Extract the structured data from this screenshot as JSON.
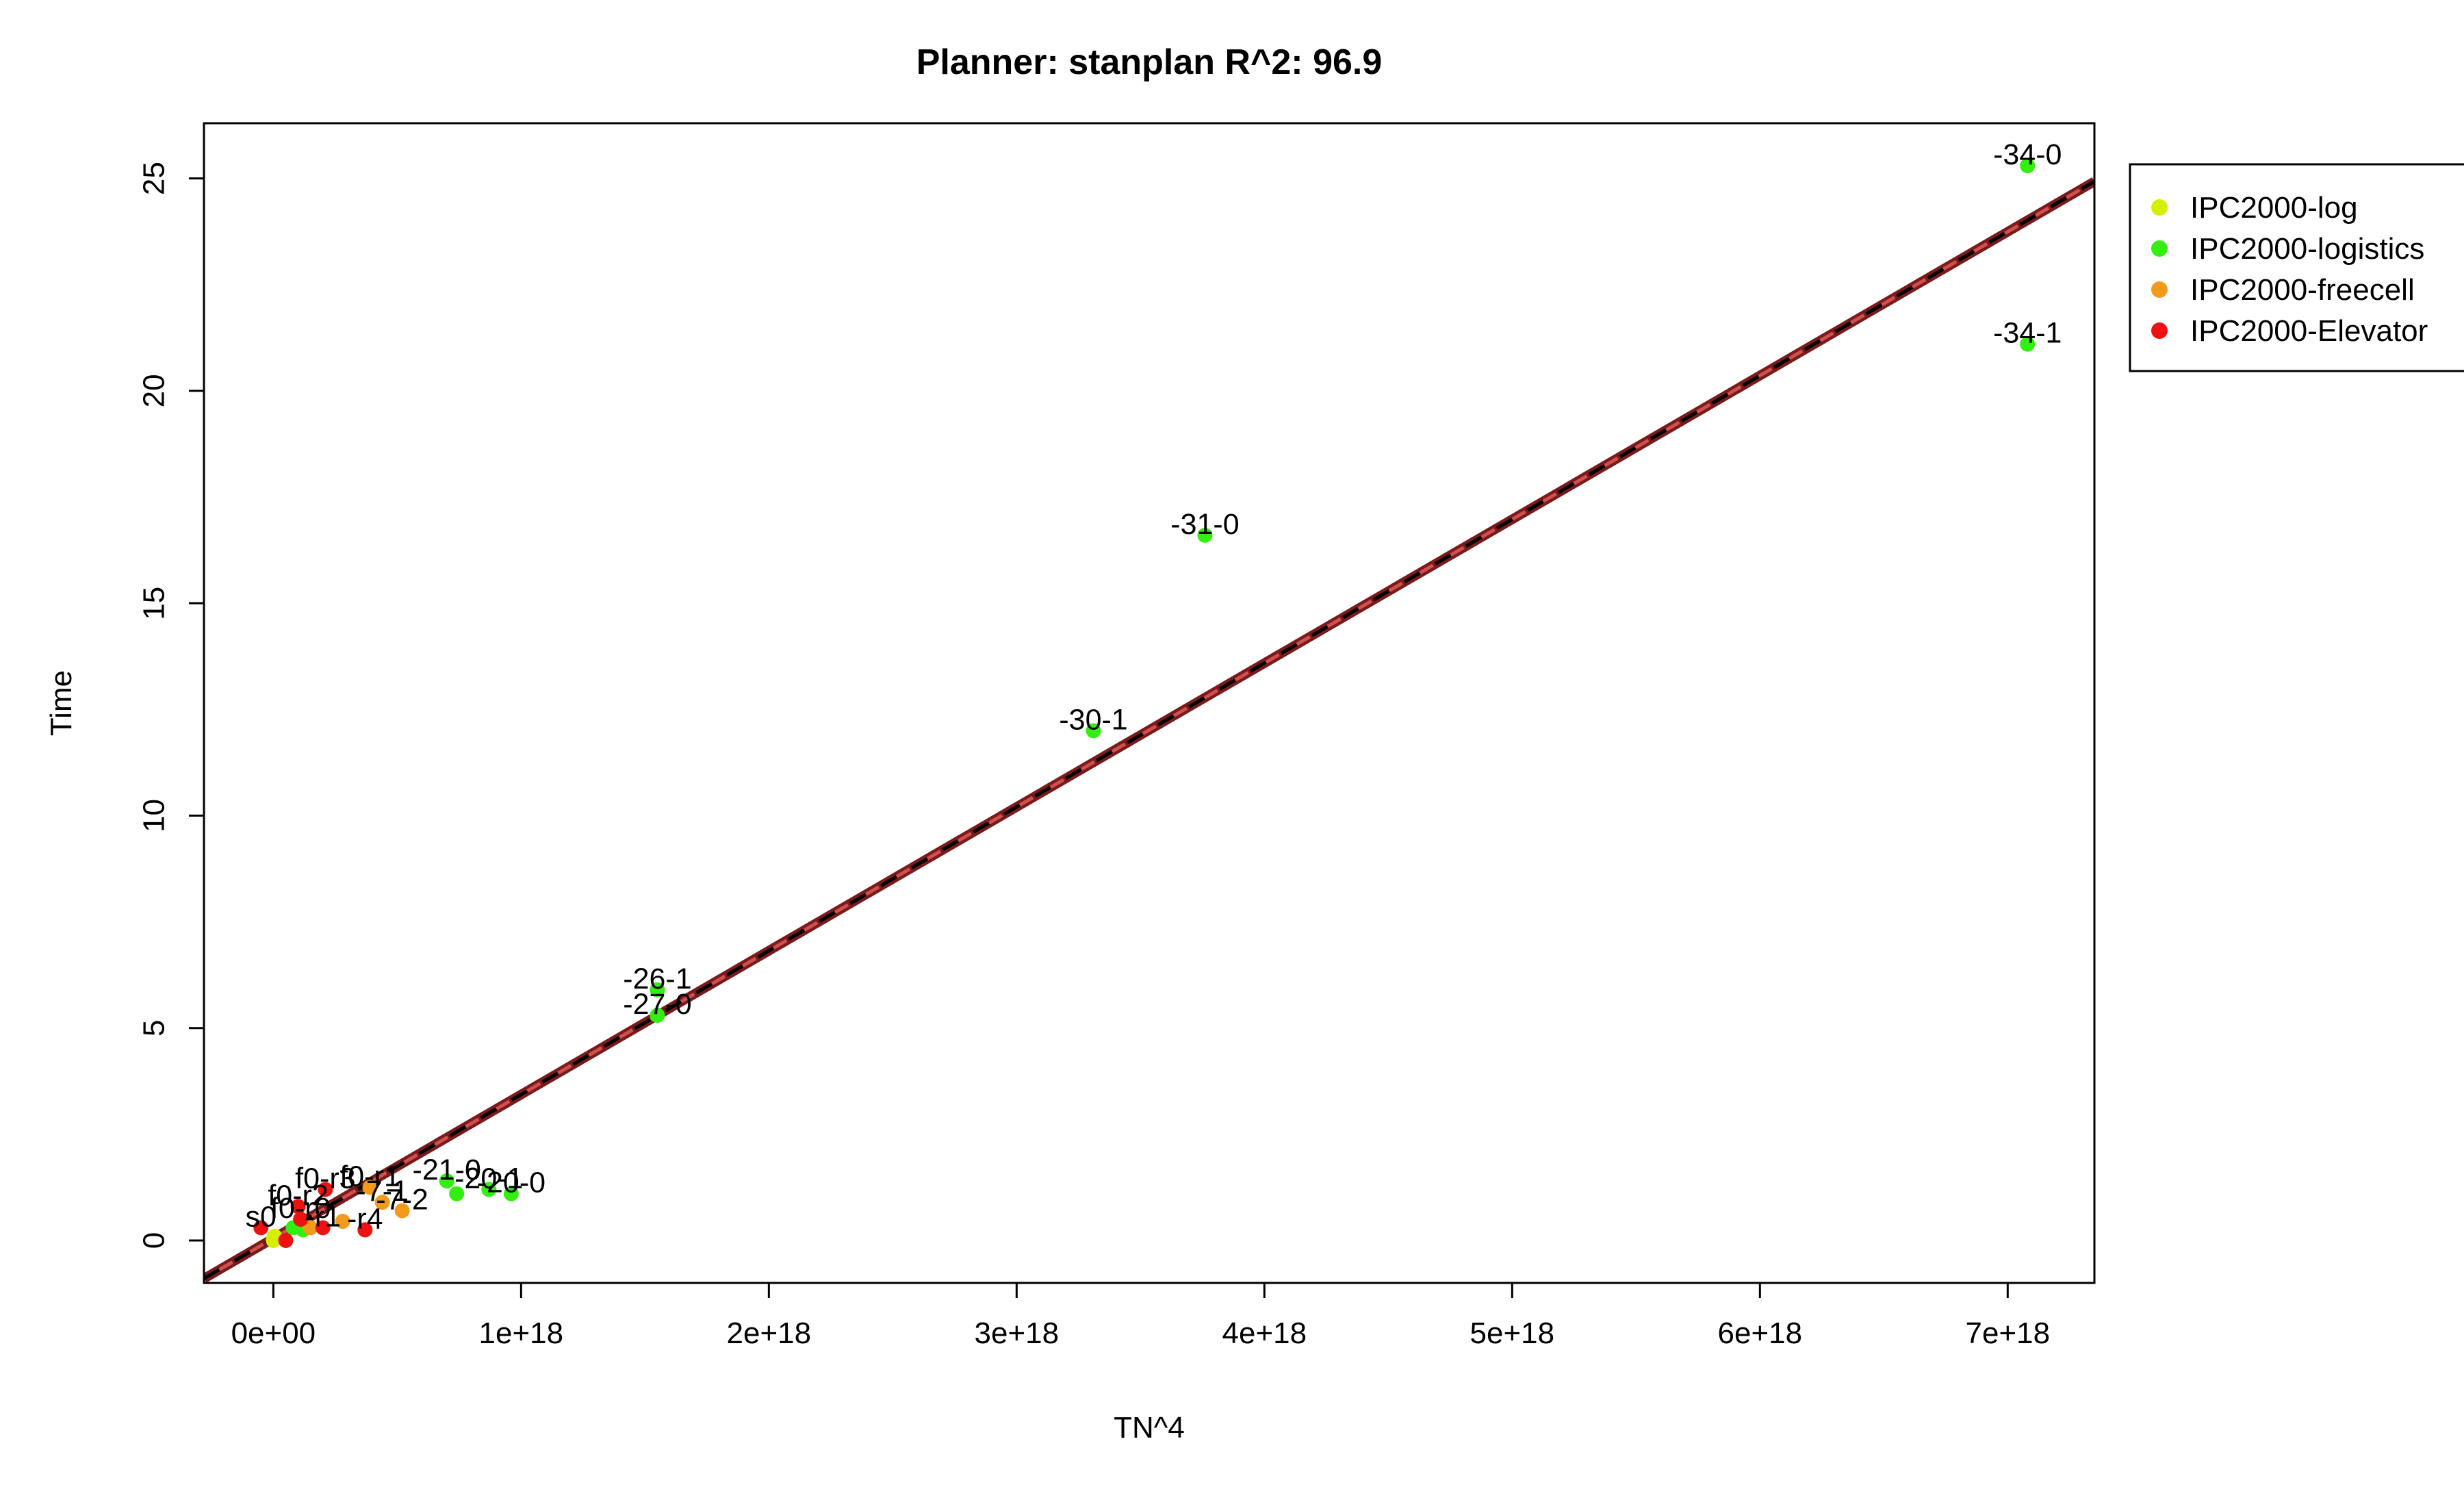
{
  "chart_data": {
    "type": "scatter",
    "title": "Planner: stanplan R^2: 96.9",
    "xlabel": "TN^4",
    "ylabel": "Time",
    "xlim": [
      -2.8e+17,
      7.35e+18
    ],
    "ylim": [
      -1.0,
      26.3
    ],
    "x_ticks": [
      {
        "value": 0,
        "label": "0e+00"
      },
      {
        "value": 1e+18,
        "label": "1e+18"
      },
      {
        "value": 2e+18,
        "label": "2e+18"
      },
      {
        "value": 3e+18,
        "label": "3e+18"
      },
      {
        "value": 4e+18,
        "label": "4e+18"
      },
      {
        "value": 5e+18,
        "label": "5e+18"
      },
      {
        "value": 6e+18,
        "label": "6e+18"
      },
      {
        "value": 7e+18,
        "label": "7e+18"
      }
    ],
    "y_ticks": [
      {
        "value": 0,
        "label": "0"
      },
      {
        "value": 5,
        "label": "5"
      },
      {
        "value": 10,
        "label": "10"
      },
      {
        "value": 15,
        "label": "15"
      },
      {
        "value": 20,
        "label": "20"
      },
      {
        "value": 25,
        "label": "25"
      }
    ],
    "legend": {
      "position": "top-right-outside",
      "entries": [
        {
          "label": "IPC2000-log",
          "color": "#d4f000"
        },
        {
          "label": "IPC2000-logistics",
          "color": "#33ee11"
        },
        {
          "label": "IPC2000-freecell",
          "color": "#f29a1a"
        },
        {
          "label": "IPC2000-Elevator",
          "color": "#ee1111"
        }
      ]
    },
    "fit_lines": [
      {
        "style": "solid",
        "color": "#7a1a1a",
        "slope": 3.385e-18,
        "intercept": 0.05
      },
      {
        "style": "dashed",
        "color": "#000000",
        "slope": 3.385e-18,
        "intercept": 0.05
      },
      {
        "style": "dashed",
        "color": "#d05050",
        "slope": 3.385e-18,
        "intercept": 0.05
      }
    ],
    "series": [
      {
        "name": "IPC2000-log",
        "color": "#d4f000",
        "points": [
          {
            "x": 0,
            "y": 0.0,
            "label": ""
          },
          {
            "x": 1000000000000000.0,
            "y": 0.05,
            "label": ""
          },
          {
            "x": 5000000000000000.0,
            "y": 0.1,
            "label": ""
          },
          {
            "x": 1e+16,
            "y": 0.05,
            "label": ""
          }
        ]
      },
      {
        "name": "IPC2000-logistics",
        "color": "#33ee11",
        "points": [
          {
            "x": 7.08e+18,
            "y": 25.3,
            "label": "-34-0"
          },
          {
            "x": 7.08e+18,
            "y": 21.1,
            "label": "-34-1"
          },
          {
            "x": 3.76e+18,
            "y": 16.6,
            "label": "-31-0"
          },
          {
            "x": 3.31e+18,
            "y": 12.0,
            "label": "-30-1"
          },
          {
            "x": 1.55e+18,
            "y": 5.9,
            "label": "-26-1"
          },
          {
            "x": 1.55e+18,
            "y": 5.3,
            "label": "-27-0"
          },
          {
            "x": 7e+17,
            "y": 1.4,
            "label": "-21-0"
          },
          {
            "x": 7.4e+17,
            "y": 1.1,
            "label": ""
          },
          {
            "x": 8.7e+17,
            "y": 1.2,
            "label": "-20-1"
          },
          {
            "x": 9.6e+17,
            "y": 1.1,
            "label": "-20-0"
          },
          {
            "x": 8e+16,
            "y": 0.3,
            "label": ""
          },
          {
            "x": 1.2e+17,
            "y": 0.25,
            "label": ""
          }
        ]
      },
      {
        "name": "IPC2000-freecell",
        "color": "#f29a1a",
        "points": [
          {
            "x": 3.9e+17,
            "y": 1.25,
            "label": "f0-r1"
          },
          {
            "x": 5.2e+17,
            "y": 0.7,
            "label": "-7-2"
          },
          {
            "x": 4.4e+17,
            "y": 0.9,
            "label": "-7-1"
          },
          {
            "x": 1.5e+17,
            "y": 0.3,
            "label": ""
          },
          {
            "x": 2.8e+17,
            "y": 0.45,
            "label": ""
          }
        ]
      },
      {
        "name": "IPC2000-Elevator",
        "color": "#ee1111",
        "points": [
          {
            "x": 2.1e+17,
            "y": 1.2,
            "label": "f0-r3"
          },
          {
            "x": 3.7e+17,
            "y": 0.25,
            "label": "-r4"
          },
          {
            "x": 2e+17,
            "y": 0.3,
            "label": "-r1"
          },
          {
            "x": 1.1e+17,
            "y": 0.5,
            "label": "f0-r0"
          },
          {
            "x": 5e+16,
            "y": 0.0,
            "label": ""
          },
          {
            "x": 1e+17,
            "y": 0.8,
            "label": "f0-r2"
          },
          {
            "x": -5e+16,
            "y": 0.3,
            "label": "s0"
          }
        ]
      }
    ]
  }
}
